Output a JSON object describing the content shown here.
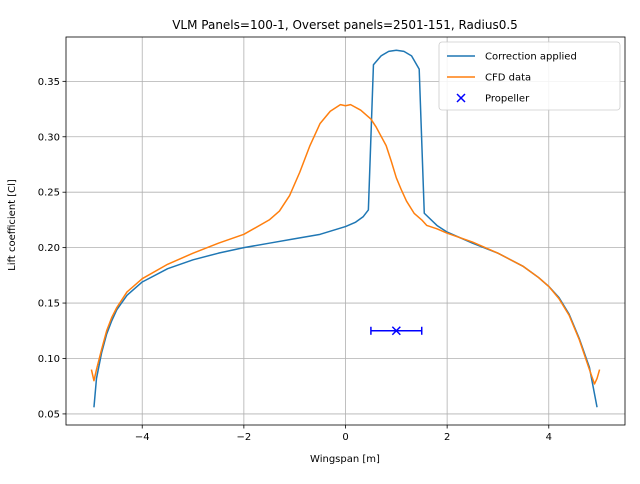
{
  "chart_data": {
    "type": "line",
    "title": "VLM Panels=100-1, Overset panels=2501-151, Radius0.5",
    "xlabel": "Wingspan [m]",
    "ylabel": "Lift coefficient [Cl]",
    "xlim": [
      -5.5,
      5.5
    ],
    "ylim": [
      0.04,
      0.39
    ],
    "xticks": [
      -4,
      -2,
      0,
      2,
      4
    ],
    "xtick_labels": [
      "−4",
      "−2",
      "0",
      "2",
      "4"
    ],
    "yticks": [
      0.05,
      0.1,
      0.15,
      0.2,
      0.25,
      0.3,
      0.35
    ],
    "ytick_labels": [
      "0.05",
      "0.10",
      "0.15",
      "0.20",
      "0.25",
      "0.30",
      "0.35"
    ],
    "grid": true,
    "legend_position": "top-right",
    "series": [
      {
        "name": "Correction applied",
        "color": "#1f77b4",
        "points": [
          [
            -4.95,
            0.056
          ],
          [
            -4.9,
            0.082
          ],
          [
            -4.8,
            0.105
          ],
          [
            -4.7,
            0.122
          ],
          [
            -4.6,
            0.134
          ],
          [
            -4.5,
            0.144
          ],
          [
            -4.3,
            0.157
          ],
          [
            -4.0,
            0.169
          ],
          [
            -3.5,
            0.181
          ],
          [
            -3.0,
            0.189
          ],
          [
            -2.5,
            0.195
          ],
          [
            -2.0,
            0.2
          ],
          [
            -1.5,
            0.204
          ],
          [
            -1.0,
            0.208
          ],
          [
            -0.5,
            0.212
          ],
          [
            0.0,
            0.219
          ],
          [
            0.2,
            0.223
          ],
          [
            0.35,
            0.228
          ],
          [
            0.45,
            0.234
          ],
          [
            0.55,
            0.365
          ],
          [
            0.7,
            0.373
          ],
          [
            0.85,
            0.377
          ],
          [
            1.0,
            0.378
          ],
          [
            1.15,
            0.377
          ],
          [
            1.3,
            0.373
          ],
          [
            1.45,
            0.361
          ],
          [
            1.55,
            0.231
          ],
          [
            1.8,
            0.22
          ],
          [
            2.0,
            0.214
          ],
          [
            2.5,
            0.204
          ],
          [
            3.0,
            0.195
          ],
          [
            3.5,
            0.183
          ],
          [
            3.8,
            0.173
          ],
          [
            4.0,
            0.165
          ],
          [
            4.2,
            0.155
          ],
          [
            4.4,
            0.14
          ],
          [
            4.6,
            0.118
          ],
          [
            4.8,
            0.092
          ],
          [
            4.95,
            0.056
          ]
        ]
      },
      {
        "name": "CFD data",
        "color": "#ff7f0e",
        "points": [
          [
            -5.0,
            0.09
          ],
          [
            -4.95,
            0.08
          ],
          [
            -4.9,
            0.09
          ],
          [
            -4.8,
            0.108
          ],
          [
            -4.7,
            0.125
          ],
          [
            -4.6,
            0.137
          ],
          [
            -4.5,
            0.146
          ],
          [
            -4.3,
            0.16
          ],
          [
            -4.0,
            0.172
          ],
          [
            -3.5,
            0.185
          ],
          [
            -3.0,
            0.195
          ],
          [
            -2.5,
            0.204
          ],
          [
            -2.0,
            0.212
          ],
          [
            -1.5,
            0.225
          ],
          [
            -1.3,
            0.233
          ],
          [
            -1.1,
            0.247
          ],
          [
            -0.9,
            0.268
          ],
          [
            -0.7,
            0.292
          ],
          [
            -0.5,
            0.312
          ],
          [
            -0.3,
            0.323
          ],
          [
            -0.1,
            0.329
          ],
          [
            0.0,
            0.328
          ],
          [
            0.1,
            0.329
          ],
          [
            0.3,
            0.324
          ],
          [
            0.5,
            0.316
          ],
          [
            0.6,
            0.309
          ],
          [
            0.8,
            0.292
          ],
          [
            0.9,
            0.278
          ],
          [
            1.0,
            0.263
          ],
          [
            1.1,
            0.252
          ],
          [
            1.2,
            0.242
          ],
          [
            1.35,
            0.231
          ],
          [
            1.5,
            0.225
          ],
          [
            1.6,
            0.22
          ],
          [
            1.8,
            0.217
          ],
          [
            2.0,
            0.213
          ],
          [
            2.5,
            0.205
          ],
          [
            3.0,
            0.195
          ],
          [
            3.5,
            0.183
          ],
          [
            3.8,
            0.173
          ],
          [
            4.0,
            0.165
          ],
          [
            4.2,
            0.154
          ],
          [
            4.4,
            0.139
          ],
          [
            4.6,
            0.117
          ],
          [
            4.8,
            0.09
          ],
          [
            4.9,
            0.077
          ],
          [
            4.95,
            0.082
          ],
          [
            5.0,
            0.09
          ]
        ]
      }
    ],
    "propeller": {
      "name": "Propeller",
      "color": "#0000ff",
      "x": 1.0,
      "y": 0.125,
      "xerr": 0.5
    }
  }
}
